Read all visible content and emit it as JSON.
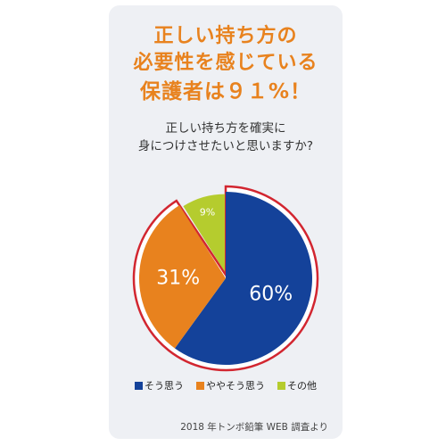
{
  "header": {
    "title_line1": "正しい持ち方の",
    "title_line2": "必要性を感じている",
    "title_line3": "保護者は９１%！"
  },
  "question": {
    "line1": "正しい持ち方を確実に",
    "line2": "身につけさせたいと思いますか?"
  },
  "source": "2018 年トンボ鉛筆 WEB 調査より",
  "colors": {
    "accent": "#e8821e",
    "highlight_outline": "#d22630"
  },
  "chart_data": {
    "type": "pie",
    "title": "正しい持ち方を確実に身につけさせたいと思いますか?",
    "slices": [
      {
        "label": "そう思う",
        "value": 60,
        "display": "60%",
        "color": "#14429a"
      },
      {
        "label": "ややそう思う",
        "value": 31,
        "display": "31%",
        "color": "#e8821e"
      },
      {
        "label": "その他",
        "value": 9,
        "display": "9%",
        "color": "#b5cc2e"
      }
    ],
    "legend_position": "bottom",
    "highlight": "そう思う + ややそう思う = 91%"
  }
}
